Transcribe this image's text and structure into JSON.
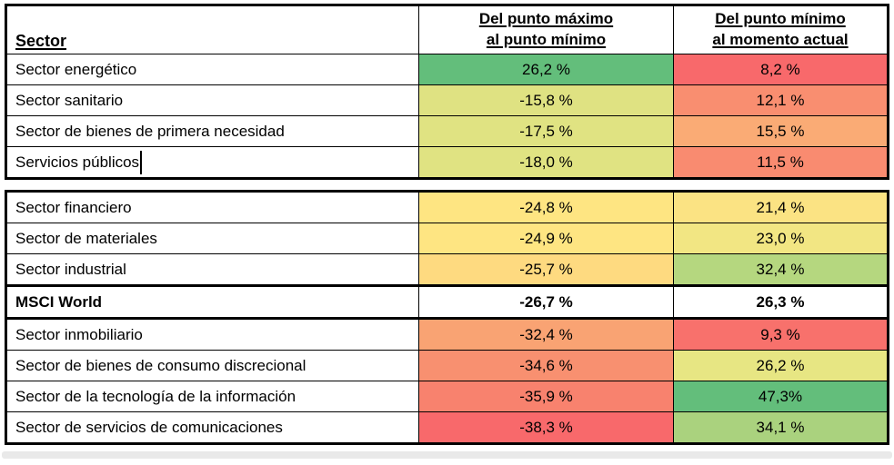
{
  "header": {
    "col_sector": "Sector",
    "col_max_min_line1": "Del punto máximo",
    "col_max_min_line2": "al punto mínimo",
    "col_min_now_line1": "Del punto mínimo",
    "col_min_now_line2": "al momento actual"
  },
  "rows": [
    {
      "sector": "Sector energético",
      "v1": "26,2 %",
      "c1": "#63BE7B",
      "v2": "8,2 %",
      "c2": "#F8696B"
    },
    {
      "sector": "Sector sanitario",
      "v1": "-15,8 %",
      "c1": "#DFE282",
      "v2": "12,1 %",
      "c2": "#F98E70"
    },
    {
      "sector": "Sector de bienes de primera necesidad",
      "v1": "-17,5 %",
      "c1": "#E0E382",
      "v2": "15,5 %",
      "c2": "#FAAB75"
    },
    {
      "sector": "Servicios públicos",
      "v1": "-18,0 %",
      "c1": "#E0E382",
      "v2": "11,5 %",
      "c2": "#F98B70"
    },
    {
      "sector": "Sector financiero",
      "v1": "-24,8 %",
      "c1": "#FEE582",
      "v2": "21,4 %",
      "c2": "#FBE383"
    },
    {
      "sector": "Sector de materiales",
      "v1": "-24,9 %",
      "c1": "#FEE582",
      "v2": "23,0 %",
      "c2": "#F2E683"
    },
    {
      "sector": "Sector industrial",
      "v1": "-25,7 %",
      "c1": "#FEDA80",
      "v2": "32,4 %",
      "c2": "#B5D77F"
    },
    {
      "sector": "MSCI World",
      "v1": "-26,7 %",
      "c1": "#FFFFFF",
      "v2": "26,3 %",
      "c2": "#FFFFFF"
    },
    {
      "sector": "Sector inmobiliario",
      "v1": "-32,4 %",
      "c1": "#F9A373",
      "v2": "9,3 %",
      "c2": "#F8716C"
    },
    {
      "sector": "Sector de bienes de consumo discrecional",
      "v1": "-34,6 %",
      "c1": "#F89070",
      "v2": "26,2 %",
      "c2": "#E7E683"
    },
    {
      "sector": "Sector de la tecnología de la información",
      "v1": "-35,9 %",
      "c1": "#F8826E",
      "v2": "47,3%",
      "c2": "#63BE7B"
    },
    {
      "sector": "Sector de servicios de comunicaciones",
      "v1": "-38,3 %",
      "c1": "#F8696B",
      "v2": "34,1 %",
      "c2": "#AAD27E"
    }
  ],
  "chart_data": {
    "type": "table",
    "columns": [
      "Sector",
      "Del punto máximo al punto mínimo",
      "Del punto mínimo al momento actual"
    ],
    "rows": [
      [
        "Sector energético",
        26.2,
        8.2
      ],
      [
        "Sector sanitario",
        -15.8,
        12.1
      ],
      [
        "Sector de bienes de primera necesidad",
        -17.5,
        15.5
      ],
      [
        "Servicios públicos",
        -18.0,
        11.5
      ],
      [
        "Sector financiero",
        -24.8,
        21.4
      ],
      [
        "Sector de materiales",
        -24.9,
        23.0
      ],
      [
        "Sector industrial",
        -25.7,
        32.4
      ],
      [
        "MSCI World",
        -26.7,
        26.3
      ],
      [
        "Sector inmobiliario",
        -32.4,
        9.3
      ],
      [
        "Sector de bienes de consumo discrecional",
        -34.6,
        26.2
      ],
      [
        "Sector de la tecnología de la información",
        -35.9,
        47.3
      ],
      [
        "Sector de servicios de comunicaciones",
        -38.3,
        34.1
      ]
    ],
    "heatmap_colors": {
      "min": "#F8696B",
      "mid": "#FFE582",
      "max": "#63BE7B"
    }
  },
  "colors": {
    "border": "#000000",
    "bottom_bar": "#E9E9E9",
    "background": "#FFFFFF"
  }
}
